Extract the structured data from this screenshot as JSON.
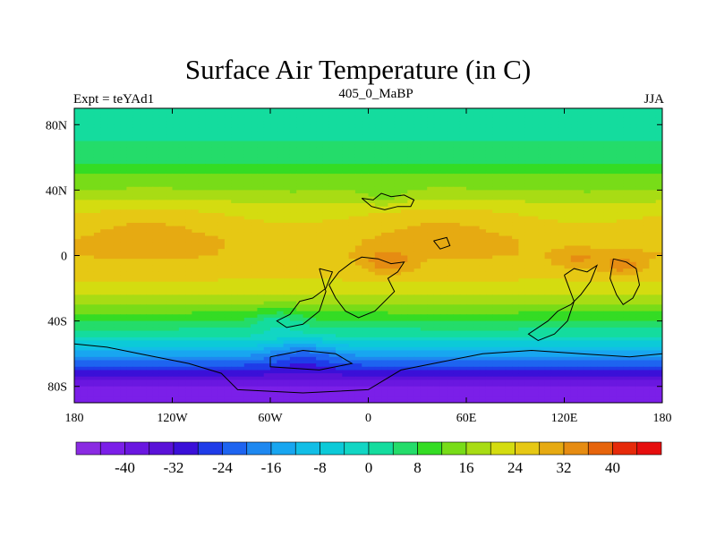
{
  "header": {
    "title": "Surface Air Temperature (in C)",
    "left_label": "Expt = teYAd1",
    "center_label": "405_0_MaBP",
    "right_label": "JJA"
  },
  "axes": {
    "y_ticks": [
      "80N",
      "40N",
      "0",
      "40S",
      "80S"
    ],
    "y_values": [
      80,
      40,
      0,
      -40,
      -80
    ],
    "x_ticks": [
      "180",
      "120W",
      "60W",
      "0",
      "60E",
      "120E",
      "180"
    ],
    "x_values": [
      -180,
      -120,
      -60,
      0,
      60,
      120,
      180
    ],
    "lon_range": [
      -180,
      180
    ],
    "lat_range": [
      -90,
      90
    ]
  },
  "colorbar": {
    "labels": [
      "-40",
      "-32",
      "-24",
      "-16",
      "-8",
      "0",
      "8",
      "16",
      "24",
      "32",
      "40"
    ],
    "levels": [
      -44,
      -40,
      -36,
      -32,
      -28,
      -24,
      -20,
      -16,
      -12,
      -8,
      -4,
      0,
      4,
      8,
      12,
      16,
      20,
      24,
      28,
      32,
      36,
      40,
      44
    ],
    "colors": [
      "#8a2be2",
      "#7b1fe8",
      "#6a17e0",
      "#5a12d8",
      "#3a10d8",
      "#1f3ce8",
      "#1e64f0",
      "#1e88f0",
      "#18a6f0",
      "#12bee6",
      "#0ccad8",
      "#12d6c4",
      "#14dc9e",
      "#24dc6a",
      "#34dc24",
      "#78dc18",
      "#a8dc14",
      "#d4dc10",
      "#e6c814",
      "#e6aa12",
      "#e68c12",
      "#e6640c",
      "#e62a0a",
      "#e60e0e"
    ]
  },
  "chart_data": {
    "type": "heatmap",
    "variable": "Surface Air Temperature (in C)",
    "experiment": "teYAd1",
    "period": "405_0_MaBP",
    "season": "JJA",
    "zonal_mean_profile": {
      "lat": [
        90,
        80,
        70,
        60,
        50,
        40,
        30,
        20,
        10,
        0,
        -10,
        -20,
        -30,
        -40,
        -50,
        -60,
        -70,
        -80,
        -90
      ],
      "temp_c": [
        2,
        2,
        4,
        6,
        12,
        16,
        22,
        26,
        28,
        28,
        26,
        22,
        16,
        8,
        0,
        -14,
        -28,
        -40,
        -44
      ]
    }
  }
}
